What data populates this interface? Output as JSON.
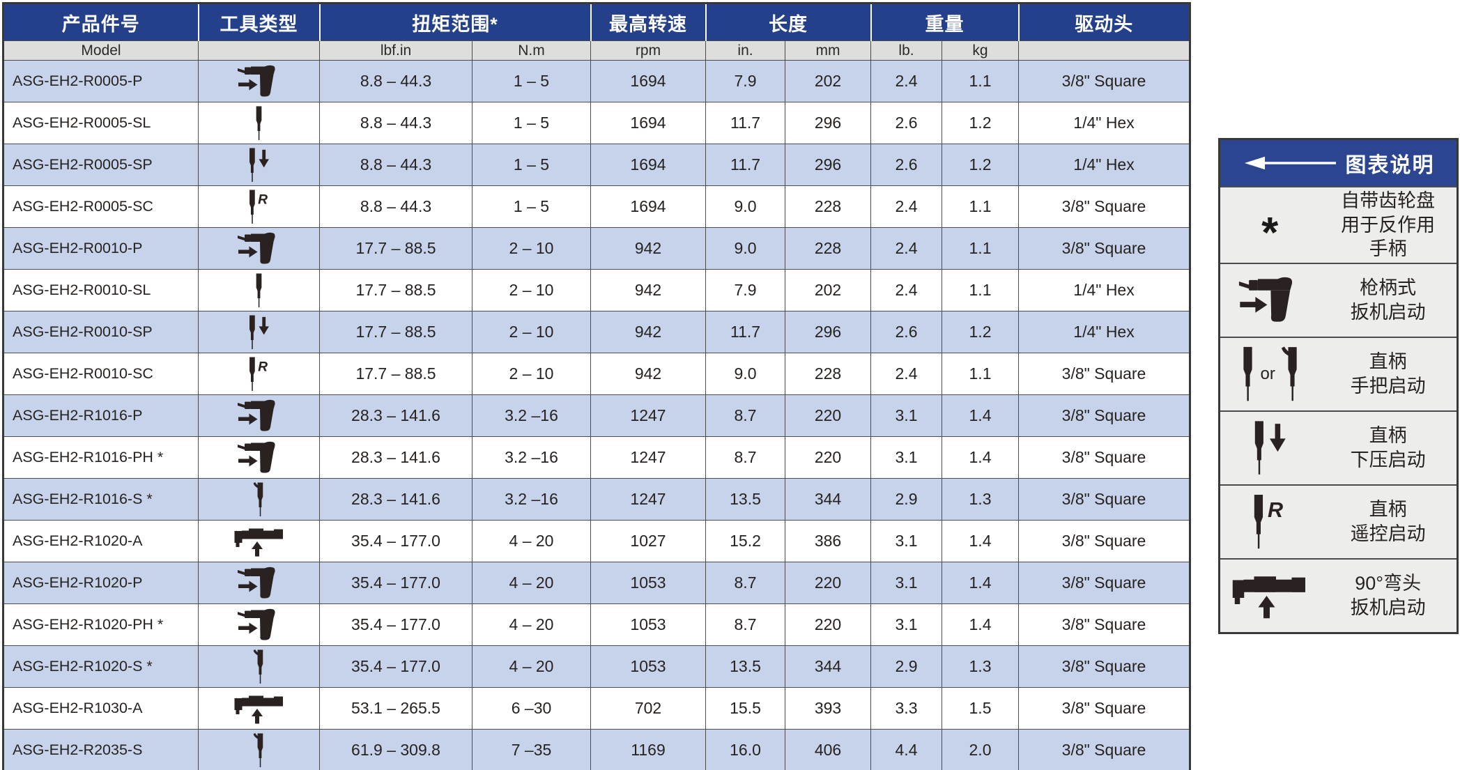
{
  "colors": {
    "table_header_blue": "#24408a",
    "legend_header_blue": "#2b4591",
    "row_alt_blue": "#c7d3eb",
    "subheader_gray": "#dedfdd",
    "legend_bg_gray": "#ededeb",
    "border_dark": "#4a4a4c",
    "text_dark": "#262220"
  },
  "table": {
    "headers": {
      "product": "产品件号",
      "tool_type": "工具类型",
      "torque": "扭矩范围*",
      "speed": "最高转速",
      "length": "长度",
      "weight": "重量",
      "drive": "驱动头"
    },
    "subheaders": {
      "model": "Model",
      "lbf_in": "lbf.in",
      "nm": "N.m",
      "rpm": "rpm",
      "in": "in.",
      "mm": "mm",
      "lb": "lb.",
      "kg": "kg"
    },
    "icon_texts": {
      "remote_r": "R"
    },
    "rows": [
      {
        "model": "ASG-EH2-R0005-P",
        "icon": "pistol",
        "lbf_in": "8.8 – 44.3",
        "nm": "1 – 5",
        "rpm": "1694",
        "len_in": "7.9",
        "len_mm": "202",
        "lb": "2.4",
        "kg": "1.1",
        "drive": "3/8\" Square"
      },
      {
        "model": "ASG-EH2-R0005-SL",
        "icon": "straight",
        "lbf_in": "8.8 – 44.3",
        "nm": "1 – 5",
        "rpm": "1694",
        "len_in": "11.7",
        "len_mm": "296",
        "lb": "2.6",
        "kg": "1.2",
        "drive": "1/4\" Hex"
      },
      {
        "model": "ASG-EH2-R0005-SP",
        "icon": "straight-down",
        "lbf_in": "8.8 – 44.3",
        "nm": "1 – 5",
        "rpm": "1694",
        "len_in": "11.7",
        "len_mm": "296",
        "lb": "2.6",
        "kg": "1.2",
        "drive": "1/4\" Hex"
      },
      {
        "model": "ASG-EH2-R0005-SC",
        "icon": "straight-remote",
        "lbf_in": "8.8 – 44.3",
        "nm": "1 – 5",
        "rpm": "1694",
        "len_in": "9.0",
        "len_mm": "228",
        "lb": "2.4",
        "kg": "1.1",
        "drive": "3/8\" Square"
      },
      {
        "model": "ASG-EH2-R0010-P",
        "icon": "pistol",
        "lbf_in": "17.7 – 88.5",
        "nm": "2 – 10",
        "rpm": "942",
        "len_in": "9.0",
        "len_mm": "228",
        "lb": "2.4",
        "kg": "1.1",
        "drive": "3/8\" Square"
      },
      {
        "model": "ASG-EH2-R0010-SL",
        "icon": "straight",
        "lbf_in": "17.7 – 88.5",
        "nm": "2 – 10",
        "rpm": "942",
        "len_in": "7.9",
        "len_mm": "202",
        "lb": "2.4",
        "kg": "1.1",
        "drive": "1/4\" Hex"
      },
      {
        "model": "ASG-EH2-R0010-SP",
        "icon": "straight-down",
        "lbf_in": "17.7 – 88.5",
        "nm": "2 – 10",
        "rpm": "942",
        "len_in": "11.7",
        "len_mm": "296",
        "lb": "2.6",
        "kg": "1.2",
        "drive": "1/4\" Hex"
      },
      {
        "model": "ASG-EH2-R0010-SC",
        "icon": "straight-remote",
        "lbf_in": "17.7 – 88.5",
        "nm": "2 – 10",
        "rpm": "942",
        "len_in": "9.0",
        "len_mm": "228",
        "lb": "2.4",
        "kg": "1.1",
        "drive": "3/8\" Square"
      },
      {
        "model": "ASG-EH2-R1016-P",
        "icon": "pistol",
        "lbf_in": "28.3 – 141.6",
        "nm": "3.2 –16",
        "rpm": "1247",
        "len_in": "8.7",
        "len_mm": "220",
        "lb": "3.1",
        "kg": "1.4",
        "drive": "3/8\" Square"
      },
      {
        "model": "ASG-EH2-R1016-PH *",
        "icon": "pistol",
        "lbf_in": "28.3 – 141.6",
        "nm": "3.2 –16",
        "rpm": "1247",
        "len_in": "8.7",
        "len_mm": "220",
        "lb": "3.1",
        "kg": "1.4",
        "drive": "3/8\" Square"
      },
      {
        "model": "ASG-EH2-R1016-S *",
        "icon": "straight-lever",
        "lbf_in": "28.3 – 141.6",
        "nm": "3.2 –16",
        "rpm": "1247",
        "len_in": "13.5",
        "len_mm": "344",
        "lb": "2.9",
        "kg": "1.3",
        "drive": "3/8\" Square"
      },
      {
        "model": "ASG-EH2-R1020-A",
        "icon": "angle",
        "lbf_in": "35.4 – 177.0",
        "nm": "4 – 20",
        "rpm": "1027",
        "len_in": "15.2",
        "len_mm": "386",
        "lb": "3.1",
        "kg": "1.4",
        "drive": "3/8\" Square"
      },
      {
        "model": "ASG-EH2-R1020-P",
        "icon": "pistol",
        "lbf_in": "35.4 – 177.0",
        "nm": "4 – 20",
        "rpm": "1053",
        "len_in": "8.7",
        "len_mm": "220",
        "lb": "3.1",
        "kg": "1.4",
        "drive": "3/8\" Square"
      },
      {
        "model": "ASG-EH2-R1020-PH *",
        "icon": "pistol",
        "lbf_in": "35.4 – 177.0",
        "nm": "4 – 20",
        "rpm": "1053",
        "len_in": "8.7",
        "len_mm": "220",
        "lb": "3.1",
        "kg": "1.4",
        "drive": "3/8\" Square"
      },
      {
        "model": "ASG-EH2-R1020-S *",
        "icon": "straight-lever",
        "lbf_in": "35.4 – 177.0",
        "nm": "4 – 20",
        "rpm": "1053",
        "len_in": "13.5",
        "len_mm": "344",
        "lb": "2.9",
        "kg": "1.3",
        "drive": "3/8\" Square"
      },
      {
        "model": "ASG-EH2-R1030-A",
        "icon": "angle",
        "lbf_in": "53.1 – 265.5",
        "nm": "6 –30",
        "rpm": "702",
        "len_in": "15.5",
        "len_mm": "393",
        "lb": "3.3",
        "kg": "1.5",
        "drive": "3/8\" Square"
      },
      {
        "model": "ASG-EH2-R2035-S",
        "icon": "straight-lever",
        "lbf_in": "61.9 – 309.8",
        "nm": "7 –35",
        "rpm": "1169",
        "len_in": "16.0",
        "len_mm": "406",
        "lb": "4.4",
        "kg": "2.0",
        "drive": "3/8\" Square"
      }
    ]
  },
  "legend": {
    "title": "图表说明",
    "items": [
      {
        "icon": "asterisk",
        "symbol": "*",
        "lines": [
          "自带齿轮盘",
          "用于反作用",
          "手柄"
        ]
      },
      {
        "icon": "pistol",
        "lines": [
          "枪柄式",
          "扳机启动"
        ]
      },
      {
        "icon": "straight-or",
        "or_text": "or",
        "lines": [
          "直柄",
          "手把启动"
        ]
      },
      {
        "icon": "straight-down",
        "lines": [
          "直柄",
          "下压启动"
        ]
      },
      {
        "icon": "straight-remote",
        "lines": [
          "直柄",
          "遥控启动"
        ]
      },
      {
        "icon": "angle",
        "lines": [
          "90°弯头",
          "扳机启动"
        ]
      }
    ]
  }
}
